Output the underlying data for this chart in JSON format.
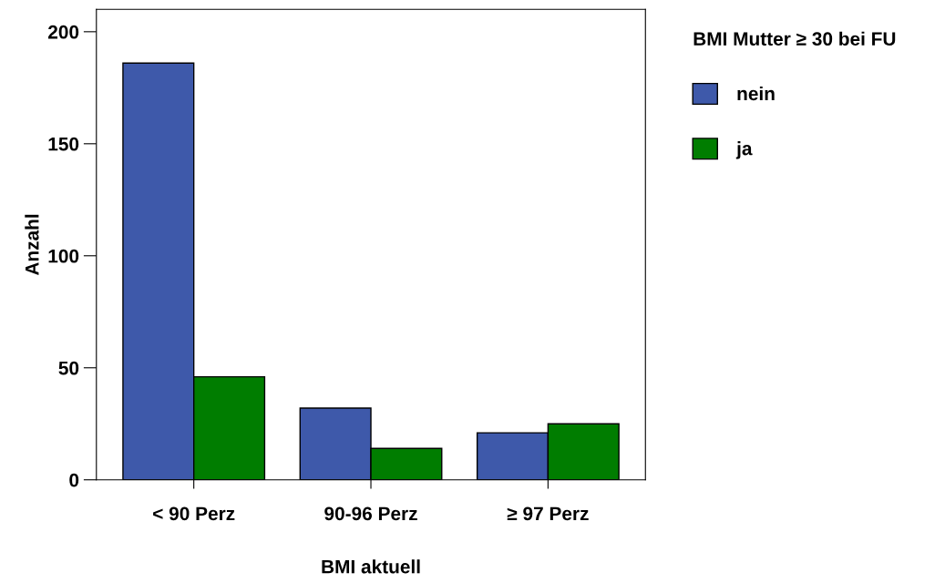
{
  "chart_data": {
    "type": "bar",
    "xlabel": "BMI aktuell",
    "ylabel": "Anzahl",
    "legend_title": "BMI Mutter ≥ 30 bei FU",
    "categories": [
      "< 90 Perz",
      "90-96 Perz",
      "≥ 97 Perz"
    ],
    "series": [
      {
        "name": "nein",
        "color": "#3e59aa",
        "values": [
          186,
          32,
          21
        ]
      },
      {
        "name": "ja",
        "color": "#007d00",
        "values": [
          46,
          14,
          25
        ]
      }
    ],
    "ylim": [
      0,
      210
    ],
    "yticks": [
      0,
      50,
      100,
      150,
      200
    ],
    "grid": false,
    "legend": "top right"
  }
}
